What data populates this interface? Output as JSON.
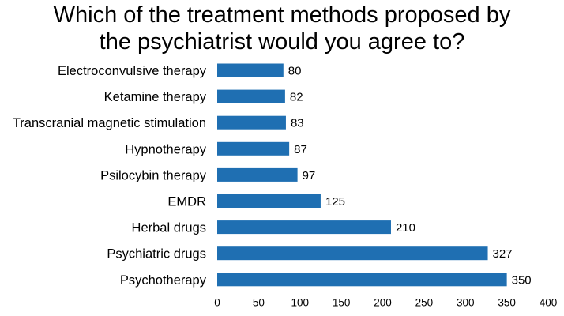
{
  "chart_data": {
    "type": "bar",
    "orientation": "horizontal",
    "title_lines": [
      "Which of the treatment methods proposed by",
      "the psychiatrist would you agree to?"
    ],
    "categories": [
      "Electroconvulsive therapy",
      "Ketamine therapy",
      "Transcranial magnetic stimulation",
      "Hypnotherapy",
      "Psilocybin therapy",
      "EMDR",
      "Herbal drugs",
      "Psychiatric drugs",
      "Psychotherapy"
    ],
    "values": [
      80,
      82,
      83,
      87,
      97,
      125,
      210,
      327,
      350
    ],
    "xlim": [
      0,
      400
    ],
    "xticks": [
      0,
      50,
      100,
      150,
      200,
      250,
      300,
      350,
      400
    ],
    "bar_color": "#1f6fb2",
    "grid": false,
    "legend": "none"
  }
}
